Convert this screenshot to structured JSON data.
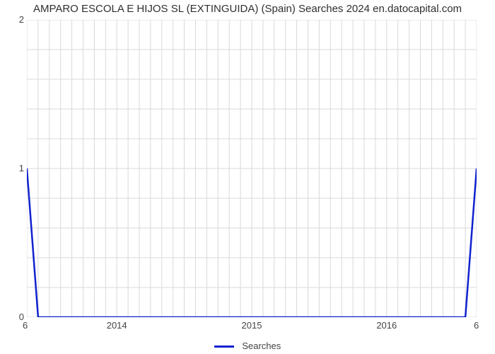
{
  "chart": {
    "type": "line",
    "title": "AMPARO ESCOLA E HIJOS SL (EXTINGUIDA) (Spain) Searches 2024 en.datocapital.com",
    "title_fontsize": 15,
    "title_color": "#2f2f2f",
    "background_color": "#ffffff",
    "grid_color": "#d9d9d9",
    "axis_text_color": "#444444",
    "axis_fontsize": 13,
    "x": {
      "min": 0,
      "max": 40,
      "major_ticks": [
        {
          "pos": 8,
          "label": "2014"
        },
        {
          "pos": 20,
          "label": "2015"
        },
        {
          "pos": 32,
          "label": "2016"
        }
      ],
      "minor_tick_interval": 1
    },
    "y": {
      "min": 0,
      "max": 2,
      "major_ticks": [
        {
          "pos": 0,
          "label": "0"
        },
        {
          "pos": 1,
          "label": "1"
        },
        {
          "pos": 2,
          "label": "2"
        }
      ],
      "minor_ticks": [
        0.2,
        0.4,
        0.6,
        0.8,
        1.2,
        1.4,
        1.6,
        1.8
      ]
    },
    "corner_labels": {
      "bottom_left": "6",
      "bottom_right": "6"
    },
    "series": [
      {
        "name": "Searches",
        "color": "#1022cf",
        "line_width": 2.5,
        "points": [
          [
            0,
            1
          ],
          [
            1,
            0
          ],
          [
            2,
            0
          ],
          [
            3,
            0
          ],
          [
            4,
            0
          ],
          [
            5,
            0
          ],
          [
            6,
            0
          ],
          [
            7,
            0
          ],
          [
            8,
            0
          ],
          [
            9,
            0
          ],
          [
            10,
            0
          ],
          [
            11,
            0
          ],
          [
            12,
            0
          ],
          [
            13,
            0
          ],
          [
            14,
            0
          ],
          [
            15,
            0
          ],
          [
            16,
            0
          ],
          [
            17,
            0
          ],
          [
            18,
            0
          ],
          [
            19,
            0
          ],
          [
            20,
            0
          ],
          [
            21,
            0
          ],
          [
            22,
            0
          ],
          [
            23,
            0
          ],
          [
            24,
            0
          ],
          [
            25,
            0
          ],
          [
            26,
            0
          ],
          [
            27,
            0
          ],
          [
            28,
            0
          ],
          [
            29,
            0
          ],
          [
            30,
            0
          ],
          [
            31,
            0
          ],
          [
            32,
            0
          ],
          [
            33,
            0
          ],
          [
            34,
            0
          ],
          [
            35,
            0
          ],
          [
            36,
            0
          ],
          [
            37,
            0
          ],
          [
            38,
            0
          ],
          [
            39,
            0
          ],
          [
            40,
            1
          ]
        ]
      }
    ],
    "legend": {
      "label": "Searches",
      "swatch_color": "#1022cf"
    }
  }
}
